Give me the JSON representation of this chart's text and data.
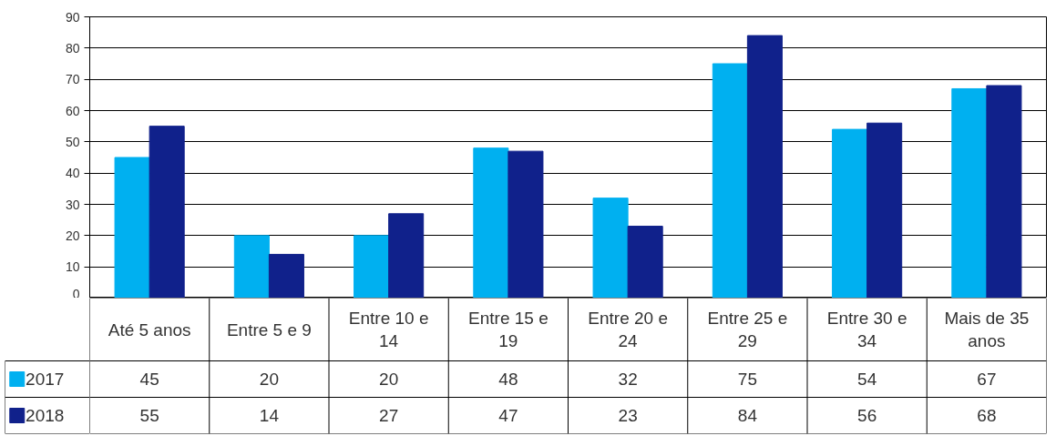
{
  "chart_data": {
    "type": "bar",
    "categories": [
      "Até 5 anos",
      "Entre 5 e 9",
      "Entre 10 e 14",
      "Entre 15 e 19",
      "Entre 20 e 24",
      "Entre 25 e 29",
      "Entre 30 e 34",
      "Mais de 35 anos"
    ],
    "series": [
      {
        "name": "2017",
        "color": "#00b0f0",
        "values": [
          45,
          20,
          20,
          48,
          32,
          75,
          54,
          67
        ]
      },
      {
        "name": "2018",
        "color": "#10218b",
        "values": [
          55,
          14,
          27,
          47,
          23,
          84,
          56,
          68
        ]
      }
    ],
    "ylim": [
      0,
      90
    ],
    "yticks": [
      0,
      10,
      20,
      30,
      40,
      50,
      60,
      70,
      80,
      90
    ],
    "grid": "y",
    "legend": "bottom left",
    "data_labels": true
  }
}
